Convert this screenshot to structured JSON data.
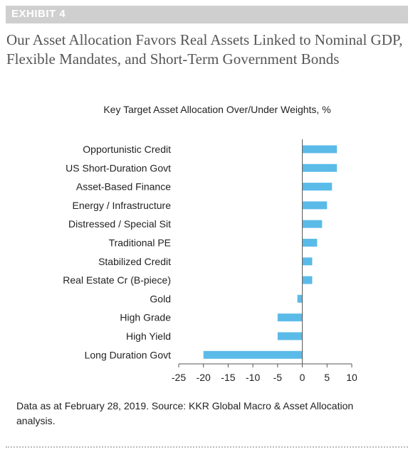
{
  "exhibit": {
    "label": "EXHIBIT 4"
  },
  "header": {
    "title": "Our Asset Allocation Favors Real Assets Linked to Nominal GDP, Flexible Mandates, and Short-Term Government Bonds"
  },
  "chart_data": {
    "type": "bar",
    "orientation": "horizontal",
    "title": "Key Target Asset Allocation Over/Under Weights, %",
    "categories": [
      "Opportunistic Credit",
      "US Short-Duration Govt",
      "Asset-Based Finance",
      "Energy / Infrastructure",
      "Distressed / Special Sit",
      "Traditional PE",
      "Stabilized Credit",
      "Real Estate Cr (B-piece)",
      "Gold",
      "High Grade",
      "High Yield",
      "Long Duration Govt"
    ],
    "values": [
      7,
      7,
      6,
      5,
      4,
      3,
      2,
      2,
      -1,
      -5,
      -5,
      -20
    ],
    "xlim": [
      -25,
      10
    ],
    "xticks": [
      -25,
      -20,
      -15,
      -10,
      -5,
      0,
      5,
      10
    ],
    "xlabel": "",
    "ylabel": "",
    "grid": false,
    "bar_color": "#5bbbe8"
  },
  "footer": {
    "source": "Data as at February 28, 2019. Source: KKR Global Macro & Asset Allocation analysis."
  }
}
